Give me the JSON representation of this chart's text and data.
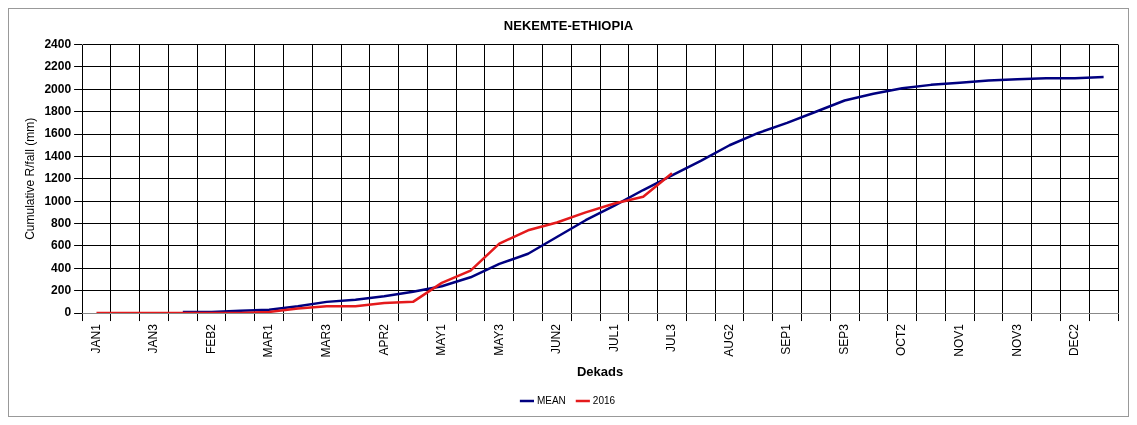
{
  "chart_data": {
    "type": "line",
    "title": "NEKEMTE-ETHIOPIA",
    "xlabel": "Dekads",
    "ylabel": "Cumulative R/fall (mm)",
    "categories": [
      "JAN1",
      null,
      "JAN3",
      null,
      "FEB2",
      null,
      "MAR1",
      null,
      "MAR3",
      null,
      "APR2",
      null,
      "MAY1",
      null,
      "MAY3",
      null,
      "JUN2",
      null,
      "JUL1",
      null,
      "JUL3",
      null,
      "AUG2",
      null,
      "SEP1",
      null,
      "SEP3",
      null,
      "OCT2",
      null,
      "NOV1",
      null,
      "NOV3",
      null,
      "DEC2",
      null
    ],
    "series": [
      {
        "name": "MEAN",
        "color": "#000080",
        "values": [
          null,
          null,
          null,
          10,
          10,
          20,
          30,
          60,
          100,
          120,
          150,
          190,
          240,
          320,
          440,
          530,
          680,
          830,
          960,
          1100,
          1230,
          1360,
          1500,
          1610,
          1700,
          1800,
          1900,
          1960,
          2010,
          2040,
          2060,
          2080,
          2090,
          2100,
          2100,
          2110
        ]
      },
      {
        "name": "2016",
        "color": "#e41a1c",
        "values": [
          0,
          0,
          0,
          0,
          0,
          0,
          10,
          40,
          60,
          60,
          90,
          100,
          270,
          380,
          620,
          740,
          810,
          900,
          980,
          1040,
          1250,
          null,
          null,
          null,
          null,
          null,
          null,
          null,
          null,
          null,
          null,
          null,
          null,
          null,
          null,
          null
        ]
      }
    ],
    "ylim": [
      0,
      2400
    ],
    "yticks": [
      0,
      200,
      400,
      600,
      800,
      1000,
      1200,
      1400,
      1600,
      1800,
      2000,
      2200,
      2400
    ],
    "grid": true,
    "legend": "bottom",
    "marker": "none",
    "line_style": "solid"
  }
}
